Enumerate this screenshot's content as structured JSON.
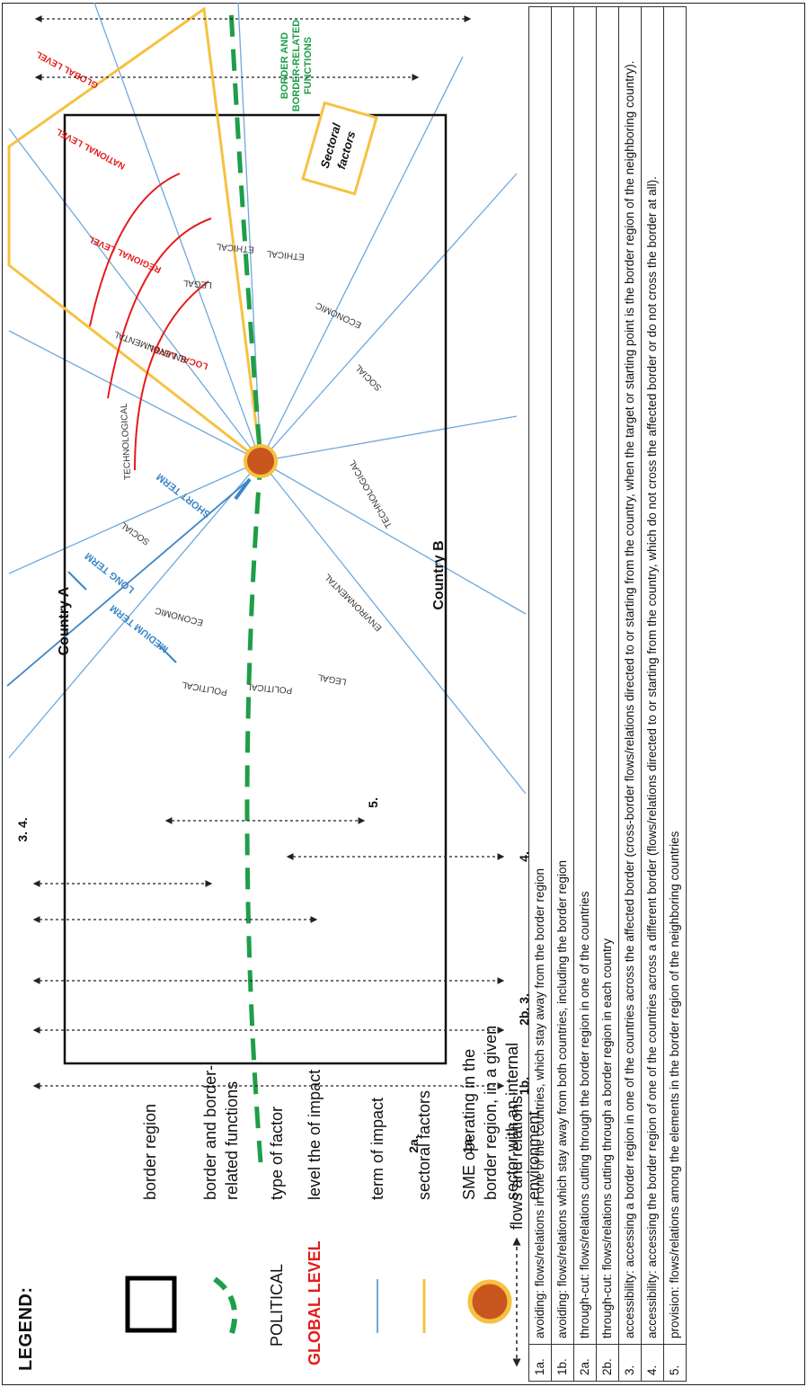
{
  "legend": {
    "title": "LEGEND:",
    "border_region": "border region",
    "border_functions_line1": "border and border-",
    "border_functions_line2": "related functions",
    "type_sample": "POLITICAL",
    "type_label": "type of factor",
    "level_sample": "GLOBAL LEVEL",
    "level_label": "level the of impact",
    "term_label": "term of impact",
    "sectoral_label": "sectoral factors",
    "sme_line1": "SME operating in the",
    "sme_line2": "border region, in a given",
    "sme_line3": "sector with an internal",
    "sme_line4": "environment",
    "flows_label": "flows and relations:"
  },
  "diagram": {
    "country_a": "Country A",
    "country_b": "Country B",
    "terms": {
      "long": "LONG TERM",
      "medium": "MEDIUM TERM",
      "short": "SHORT TERM"
    },
    "levels": {
      "global": "GLOBAL LEVEL",
      "national": "NATIONAL LEVEL",
      "regional": "REGIONAL LEVEL",
      "local": "LOCAL LEVEL"
    },
    "border_label_1": "BORDER AND",
    "border_label_2": "BORDER-RELATED",
    "border_label_3": "FUNCTIONS",
    "sectoral_1": "Sectoral",
    "sectoral_2": "factors",
    "factors_a": {
      "technological": "TECHNOLOGICAL",
      "environmental": "ENVIRONMENTAL",
      "social": "SOCIAL",
      "economic": "ECONOMIC",
      "political": "POLITICAL",
      "legal": "LEGAL",
      "ethical": "ETHICAL"
    },
    "factors_b": {
      "technological": "TECHNOLOGICAL",
      "environmental": "ENVIRONMENTAL",
      "social": "SOCIAL",
      "economic": "ECONOMIC",
      "political": "POLITICAL",
      "legal": "LEGAL",
      "ethical": "ETHICAL"
    },
    "arrow_labels": {
      "l1a": "1a.",
      "l2a": "2a.",
      "l1b": "1b.",
      "l2b3": "2b. 3.",
      "l4b": "4.",
      "l34": "3. 4.",
      "l5": "5."
    }
  },
  "flows": [
    {
      "code": "1a.",
      "text": "avoiding: flows/relations in one of the countries, which stay away from the border region"
    },
    {
      "code": "1b.",
      "text": "avoiding: flows/relations which stay away from both countries, including the border region"
    },
    {
      "code": "2a.",
      "text": "through-cut: flows/relations cutting through the border region in one of the countries"
    },
    {
      "code": "2b.",
      "text": "through-cut: flows/relations cutting through a border region in each country"
    },
    {
      "code": "3.",
      "text": "accessibility: accessing a border region in one of the countries across the affected border (cross-border flows/relations directed to or starting from the country, when the target or starting point is the border region of the neighboring country)."
    },
    {
      "code": "4.",
      "text": "accessibility: accessing the border region of one of the countries across a different border (flows/relations directed to or starting from the country, which do not cross the affected border or do not cross the border at all)."
    },
    {
      "code": "5.",
      "text": "provision: flows/relations among the elements in the border region of the neighboring countries"
    }
  ],
  "colors": {
    "blue": "#6fa8dc",
    "term_blue": "#3d85c6",
    "green": "#1e9e48",
    "red": "#e41b1b",
    "yellow": "#f5c242",
    "sme_fill": "#c9561f",
    "sme_ring": "#f5c242"
  }
}
